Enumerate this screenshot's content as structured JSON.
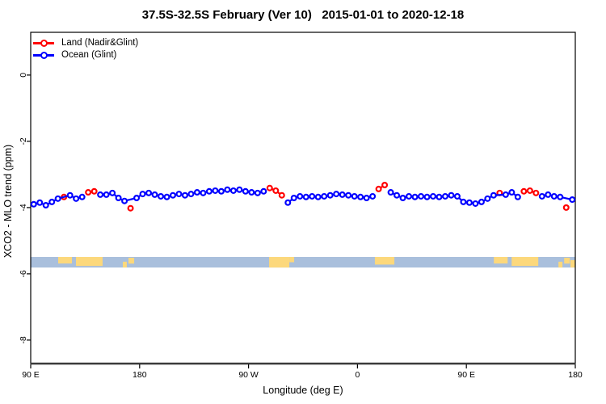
{
  "title": "37.5S-32.5S February (Ver 10)   2015-01-01 to 2020-12-18",
  "legend": {
    "items": [
      {
        "label": "Land (Nadir&Glint)",
        "color": "#ff0000"
      },
      {
        "label": "Ocean (Glint)",
        "color": "#0000ff"
      }
    ]
  },
  "chart_data": {
    "type": "scatter",
    "title": "37.5S-32.5S February (Ver 10)   2015-01-01 to 2020-12-18",
    "xlabel": "Longitude (deg E)",
    "ylabel": "XCO2 - MLO trend (ppm)",
    "xlim": [
      90,
      540
    ],
    "ylim": [
      -8.71,
      1.29
    ],
    "grid": false,
    "legend_position": "top-left",
    "marker": "open-circle-with-line",
    "x_ticks": [
      {
        "lon": 90,
        "label": "90 E"
      },
      {
        "lon": 180,
        "label": "180"
      },
      {
        "lon": 270,
        "label": "90 W"
      },
      {
        "lon": 360,
        "label": "0"
      },
      {
        "lon": 450,
        "label": "90 E"
      },
      {
        "lon": 540,
        "label": "180"
      }
    ],
    "y_ticks": [
      {
        "v": 0,
        "label": "0"
      },
      {
        "v": -2,
        "label": "-2"
      },
      {
        "v": -4,
        "label": "-4"
      },
      {
        "v": -6,
        "label": "-6"
      },
      {
        "v": -8,
        "label": "-8"
      }
    ],
    "series": [
      {
        "name": "Land (Nadir&Glint)",
        "color": "#ff0000",
        "points": [
          [
            117.5,
            -3.68
          ],
          [
            137.5,
            -3.54
          ],
          [
            142.5,
            -3.51
          ],
          [
            172.5,
            -4.02
          ],
          [
            287.5,
            -3.41
          ],
          [
            292.5,
            -3.49
          ],
          [
            297.5,
            -3.63
          ],
          [
            377.5,
            -3.44
          ],
          [
            382.5,
            -3.32
          ],
          [
            477.5,
            -3.56
          ],
          [
            497.5,
            -3.51
          ],
          [
            502.5,
            -3.49
          ],
          [
            507.5,
            -3.56
          ],
          [
            532.5,
            -4.0
          ]
        ]
      },
      {
        "name": "Ocean (Glint)",
        "color": "#0000ff",
        "points": [
          [
            92.5,
            -3.9
          ],
          [
            97.5,
            -3.85
          ],
          [
            102.5,
            -3.93
          ],
          [
            107.5,
            -3.83
          ],
          [
            112.5,
            -3.73
          ],
          [
            122.5,
            -3.63
          ],
          [
            127.5,
            -3.73
          ],
          [
            132.5,
            -3.68
          ],
          [
            147.5,
            -3.61
          ],
          [
            152.5,
            -3.61
          ],
          [
            157.5,
            -3.56
          ],
          [
            162.5,
            -3.71
          ],
          [
            167.5,
            -3.8
          ],
          [
            177.5,
            -3.71
          ],
          [
            182.5,
            -3.59
          ],
          [
            187.5,
            -3.56
          ],
          [
            192.5,
            -3.61
          ],
          [
            197.5,
            -3.66
          ],
          [
            202.5,
            -3.68
          ],
          [
            207.5,
            -3.63
          ],
          [
            212.5,
            -3.59
          ],
          [
            217.5,
            -3.63
          ],
          [
            222.5,
            -3.59
          ],
          [
            227.5,
            -3.54
          ],
          [
            232.5,
            -3.56
          ],
          [
            237.5,
            -3.51
          ],
          [
            242.5,
            -3.49
          ],
          [
            247.5,
            -3.51
          ],
          [
            252.5,
            -3.46
          ],
          [
            257.5,
            -3.49
          ],
          [
            262.5,
            -3.46
          ],
          [
            267.5,
            -3.51
          ],
          [
            272.5,
            -3.54
          ],
          [
            277.5,
            -3.56
          ],
          [
            282.5,
            -3.51
          ],
          [
            302.5,
            -3.85
          ],
          [
            307.5,
            -3.71
          ],
          [
            312.5,
            -3.66
          ],
          [
            317.5,
            -3.68
          ],
          [
            322.5,
            -3.66
          ],
          [
            327.5,
            -3.68
          ],
          [
            332.5,
            -3.66
          ],
          [
            337.5,
            -3.63
          ],
          [
            342.5,
            -3.59
          ],
          [
            347.5,
            -3.61
          ],
          [
            352.5,
            -3.63
          ],
          [
            357.5,
            -3.66
          ],
          [
            362.5,
            -3.68
          ],
          [
            367.5,
            -3.71
          ],
          [
            372.5,
            -3.66
          ],
          [
            387.5,
            -3.54
          ],
          [
            392.5,
            -3.63
          ],
          [
            397.5,
            -3.71
          ],
          [
            402.5,
            -3.66
          ],
          [
            407.5,
            -3.68
          ],
          [
            412.5,
            -3.66
          ],
          [
            417.5,
            -3.68
          ],
          [
            422.5,
            -3.66
          ],
          [
            427.5,
            -3.68
          ],
          [
            432.5,
            -3.66
          ],
          [
            437.5,
            -3.63
          ],
          [
            442.5,
            -3.66
          ],
          [
            447.5,
            -3.83
          ],
          [
            452.5,
            -3.85
          ],
          [
            457.5,
            -3.88
          ],
          [
            462.5,
            -3.83
          ],
          [
            467.5,
            -3.73
          ],
          [
            472.5,
            -3.63
          ],
          [
            482.5,
            -3.61
          ],
          [
            487.5,
            -3.54
          ],
          [
            492.5,
            -3.68
          ],
          [
            512.5,
            -3.66
          ],
          [
            517.5,
            -3.61
          ],
          [
            522.5,
            -3.66
          ],
          [
            527.5,
            -3.68
          ],
          [
            537.5,
            -3.76
          ]
        ]
      }
    ],
    "map_strip": {
      "description": "world map band for latitude 37.5S-32.5S",
      "ocean_color": "#a9bfdc",
      "land_color": "#fcd87c",
      "band_ppm": [
        -5.49,
        -5.81
      ],
      "land_patches": [
        {
          "name": "australia-west",
          "lon": [
            112.7,
            124.1
          ],
          "top": 0,
          "height": 0.62
        },
        {
          "name": "australia-east",
          "lon": [
            127.4,
            149.4
          ],
          "top": 0,
          "height": 0.85
        },
        {
          "name": "new-zealand-south",
          "lon": [
            166.1,
            169.4
          ],
          "top": 0.45,
          "height": 0.55
        },
        {
          "name": "new-zealand-north",
          "lon": [
            170.8,
            175.5
          ],
          "top": 0.08,
          "height": 0.55
        },
        {
          "name": "south-america",
          "lon": [
            287.0,
            303.7
          ],
          "top": 0,
          "height": 1.0
        },
        {
          "name": "south-america-east",
          "lon": [
            303.7,
            307.7
          ],
          "top": 0,
          "height": 0.5
        },
        {
          "name": "south-africa",
          "lon": [
            374.4,
            390.5
          ],
          "top": 0,
          "height": 0.72
        },
        {
          "name": "australia-west-repeat",
          "lon": [
            472.7,
            484.1
          ],
          "top": 0,
          "height": 0.62
        },
        {
          "name": "australia-east-repeat",
          "lon": [
            487.4,
            509.4
          ],
          "top": 0,
          "height": 0.85
        },
        {
          "name": "new-zealand-south-repeat",
          "lon": [
            526.1,
            529.4
          ],
          "top": 0.45,
          "height": 0.55
        },
        {
          "name": "new-zealand-north-repeat",
          "lon": [
            530.8,
            535.5
          ],
          "top": 0.08,
          "height": 0.55
        },
        {
          "name": "right-edge-land",
          "lon": [
            536.0,
            540.0
          ],
          "top": 0.3,
          "height": 0.7
        }
      ]
    }
  }
}
